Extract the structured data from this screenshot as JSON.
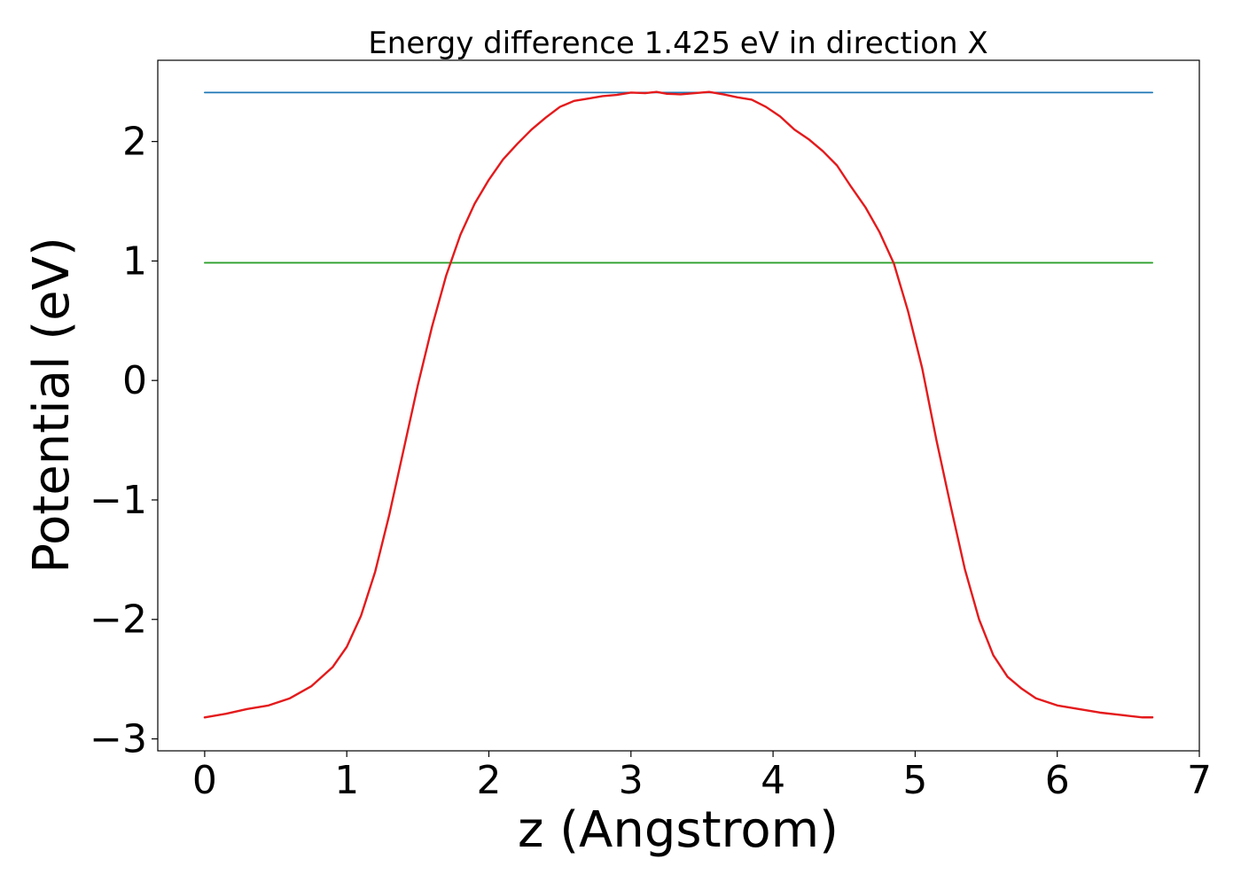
{
  "chart_data": {
    "type": "line",
    "title": "Energy difference 1.425 eV in direction X",
    "xlabel": "z (Angstrom)",
    "ylabel": "Potential (eV)",
    "xlim": [
      -0.33,
      7.0
    ],
    "ylim": [
      -3.1,
      2.68
    ],
    "xticks": [
      0,
      1,
      2,
      3,
      4,
      5,
      6,
      7
    ],
    "yticks": [
      -3,
      -2,
      -1,
      0,
      1,
      2
    ],
    "xtick_labels": [
      "0",
      "1",
      "2",
      "3",
      "4",
      "5",
      "6",
      "7"
    ],
    "ytick_labels": [
      "−3",
      "−2",
      "−1",
      "0",
      "1",
      "2"
    ],
    "grid": false,
    "legend": "none",
    "series": [
      {
        "color": "#1f77b4",
        "x": [
          0,
          6.67
        ],
        "y": [
          2.41,
          2.41
        ]
      },
      {
        "color": "#2ca02c",
        "x": [
          0,
          6.67
        ],
        "y": [
          0.985,
          0.985
        ]
      },
      {
        "color": "#e41a1c",
        "x": [
          0,
          0.15,
          0.3,
          0.45,
          0.6,
          0.75,
          0.9,
          1.0,
          1.1,
          1.2,
          1.3,
          1.4,
          1.5,
          1.6,
          1.7,
          1.8,
          1.9,
          2.0,
          2.1,
          2.2,
          2.3,
          2.4,
          2.5,
          2.6,
          2.7,
          2.8,
          2.9,
          3.0,
          3.1,
          3.18,
          3.25,
          3.35,
          3.45,
          3.55,
          3.65,
          3.75,
          3.85,
          3.95,
          4.05,
          4.15,
          4.25,
          4.35,
          4.45,
          4.55,
          4.65,
          4.75,
          4.85,
          4.95,
          5.05,
          5.15,
          5.25,
          5.35,
          5.45,
          5.55,
          5.65,
          5.75,
          5.85,
          6.0,
          6.15,
          6.3,
          6.45,
          6.6,
          6.67
        ],
        "y": [
          -2.82,
          -2.79,
          -2.75,
          -2.72,
          -2.66,
          -2.56,
          -2.4,
          -2.23,
          -1.97,
          -1.6,
          -1.12,
          -0.58,
          -0.04,
          0.45,
          0.88,
          1.22,
          1.48,
          1.68,
          1.85,
          1.98,
          2.1,
          2.2,
          2.29,
          2.34,
          2.36,
          2.38,
          2.39,
          2.41,
          2.405,
          2.415,
          2.4,
          2.395,
          2.405,
          2.415,
          2.395,
          2.37,
          2.35,
          2.29,
          2.21,
          2.1,
          2.02,
          1.92,
          1.8,
          1.62,
          1.45,
          1.24,
          0.98,
          0.58,
          0.1,
          -0.5,
          -1.05,
          -1.58,
          -2.0,
          -2.3,
          -2.48,
          -2.58,
          -2.66,
          -2.72,
          -2.75,
          -2.78,
          -2.8,
          -2.82,
          -2.82
        ]
      }
    ]
  }
}
